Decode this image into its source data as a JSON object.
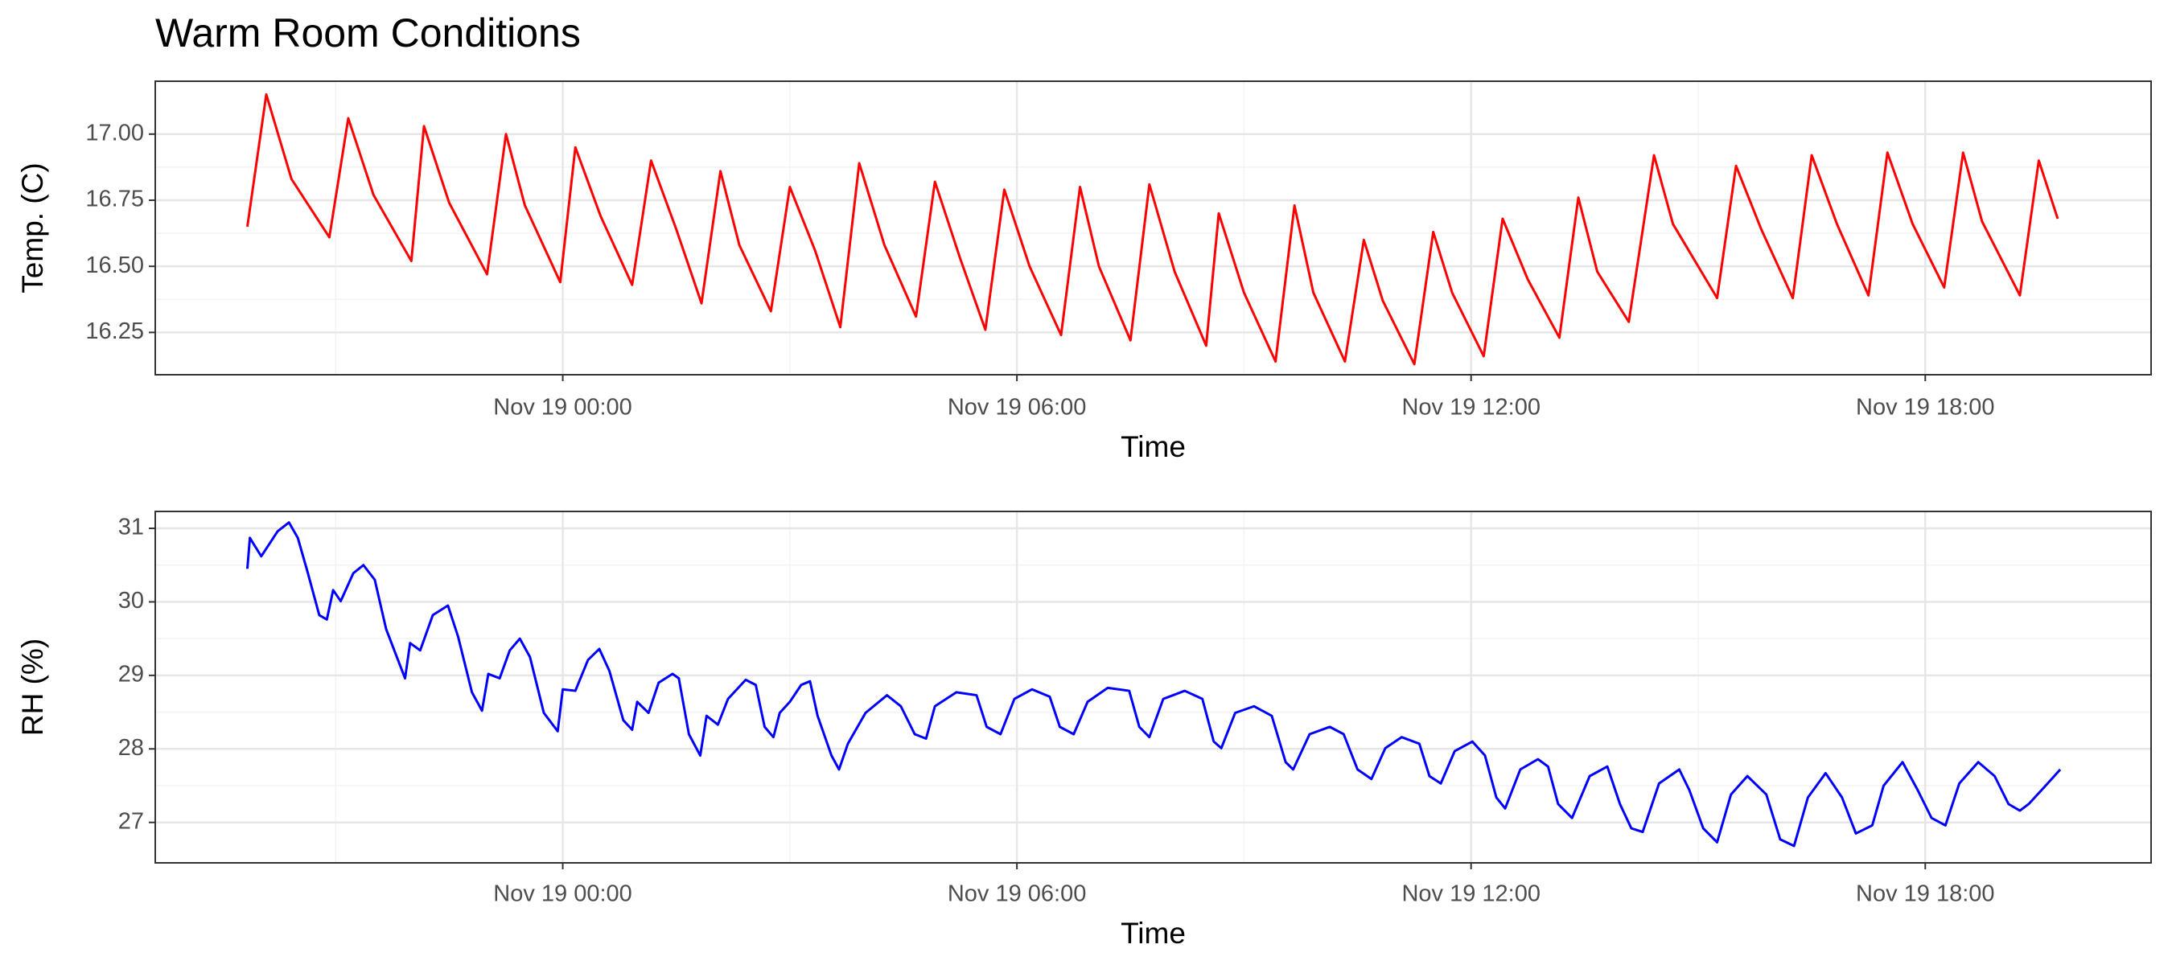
{
  "chart_data": [
    {
      "type": "line",
      "title": "Warm Room Conditions",
      "x_label": "Time",
      "y_label": "Temp. (C)",
      "color": "#ff0000",
      "grid": true,
      "xlim": [
        "Nov 18 18:37",
        "Nov 19 20:59"
      ],
      "xticks": [
        "Nov 19 00:00",
        "Nov 19 06:00",
        "Nov 19 12:00",
        "Nov 19 18:00"
      ],
      "ylim": [
        16.09,
        17.2
      ],
      "yticks": [
        16.25,
        {
          "value": 16.5,
          "label": "16.50"
        },
        16.75,
        {
          "value": 17,
          "label": "17.00"
        }
      ],
      "x": [
        "Nov 18 19:50",
        "Nov 18 20:05",
        "Nov 18 20:25",
        "Nov 18 20:55",
        "Nov 18 21:10",
        "Nov 18 21:30",
        "Nov 18 22:00",
        "Nov 18 22:10",
        "Nov 18 22:30",
        "Nov 18 23:00",
        "Nov 18 23:15",
        "Nov 18 23:30",
        "Nov 18 23:58",
        "Nov 19 00:10",
        "Nov 19 00:30",
        "Nov 19 00:55",
        "Nov 19 01:10",
        "Nov 19 01:30",
        "Nov 19 01:50",
        "Nov 19 02:05",
        "Nov 19 02:20",
        "Nov 19 02:45",
        "Nov 19 03:00",
        "Nov 19 03:20",
        "Nov 19 03:40",
        "Nov 19 03:55",
        "Nov 19 04:15",
        "Nov 19 04:40",
        "Nov 19 04:55",
        "Nov 19 05:15",
        "Nov 19 05:35",
        "Nov 19 05:50",
        "Nov 19 06:10",
        "Nov 19 06:35",
        "Nov 19 06:50",
        "Nov 19 07:05",
        "Nov 19 07:30",
        "Nov 19 07:45",
        "Nov 19 08:05",
        "Nov 19 08:30",
        "Nov 19 08:40",
        "Nov 19 09:00",
        "Nov 19 09:25",
        "Nov 19 09:40",
        "Nov 19 09:55",
        "Nov 19 10:20",
        "Nov 19 10:35",
        "Nov 19 10:50",
        "Nov 19 11:15",
        "Nov 19 11:30",
        "Nov 19 11:45",
        "Nov 19 12:10",
        "Nov 19 12:25",
        "Nov 19 12:45",
        "Nov 19 13:10",
        "Nov 19 13:25",
        "Nov 19 13:40",
        "Nov 19 14:05",
        "Nov 19 14:25",
        "Nov 19 14:40",
        "Nov 19 15:15",
        "Nov 19 15:30",
        "Nov 19 15:50",
        "Nov 19 16:15",
        "Nov 19 16:30",
        "Nov 19 16:50",
        "Nov 19 17:15",
        "Nov 19 17:30",
        "Nov 19 17:50",
        "Nov 19 18:15",
        "Nov 19 18:30",
        "Nov 19 18:45",
        "Nov 19 19:15",
        "Nov 19 19:30",
        "Nov 19 19:45"
      ],
      "values": [
        16.65,
        17.15,
        16.83,
        16.61,
        17.06,
        16.77,
        16.52,
        17.03,
        16.74,
        16.47,
        17.0,
        16.73,
        16.44,
        16.95,
        16.69,
        16.43,
        16.9,
        16.64,
        16.36,
        16.86,
        16.58,
        16.33,
        16.8,
        16.56,
        16.27,
        16.89,
        16.58,
        16.31,
        16.82,
        16.53,
        16.26,
        16.79,
        16.5,
        16.24,
        16.8,
        16.5,
        16.22,
        16.81,
        16.48,
        16.2,
        16.7,
        16.4,
        16.14,
        16.73,
        16.4,
        16.14,
        16.6,
        16.37,
        16.13,
        16.63,
        16.4,
        16.16,
        16.68,
        16.45,
        16.23,
        16.76,
        16.48,
        16.29,
        16.92,
        16.66,
        16.38,
        16.88,
        16.64,
        16.38,
        16.92,
        16.66,
        16.39,
        16.93,
        16.66,
        16.42,
        16.93,
        16.67,
        16.39,
        16.9,
        16.68
      ]
    },
    {
      "type": "line",
      "x_label": "Time",
      "y_label": "RH (%)",
      "color": "#0000ff",
      "grid": true,
      "xlim": [
        "Nov 18 18:37",
        "Nov 19 20:59"
      ],
      "xticks": [
        "Nov 19 00:00",
        "Nov 19 06:00",
        "Nov 19 12:00",
        "Nov 19 18:00"
      ],
      "ylim": [
        26.45,
        31.23
      ],
      "yticks": [
        27,
        28,
        29,
        30,
        31
      ],
      "x": [
        "Nov 18 19:50",
        "Nov 18 19:52",
        "Nov 18 20:01",
        "Nov 18 20:14",
        "Nov 18 20:23",
        "Nov 18 20:30",
        "Nov 18 20:38",
        "Nov 18 20:47",
        "Nov 18 20:53",
        "Nov 18 20:58",
        "Nov 18 21:04",
        "Nov 18 21:14",
        "Nov 18 21:22",
        "Nov 18 21:31",
        "Nov 18 21:40",
        "Nov 18 21:55",
        "Nov 18 21:59",
        "Nov 18 22:07",
        "Nov 18 22:17",
        "Nov 18 22:29",
        "Nov 18 22:37",
        "Nov 18 22:48",
        "Nov 18 22:56",
        "Nov 18 23:01",
        "Nov 18 23:10",
        "Nov 18 23:18",
        "Nov 18 23:26",
        "Nov 18 23:34",
        "Nov 18 23:45",
        "Nov 18 23:56",
        "Nov 19 00:00",
        "Nov 19 00:10",
        "Nov 19 00:20",
        "Nov 19 00:29",
        "Nov 19 00:37",
        "Nov 19 00:48",
        "Nov 19 00:55",
        "Nov 19 00:59",
        "Nov 19 01:08",
        "Nov 19 01:16",
        "Nov 19 01:27",
        "Nov 19 01:32",
        "Nov 19 01:40",
        "Nov 19 01:49",
        "Nov 19 01:54",
        "Nov 19 02:03",
        "Nov 19 02:11",
        "Nov 19 02:25",
        "Nov 19 02:33",
        "Nov 19 02:40",
        "Nov 19 02:47",
        "Nov 19 02:52",
        "Nov 19 03:00",
        "Nov 19 03:09",
        "Nov 19 03:16",
        "Nov 19 03:22",
        "Nov 19 03:33",
        "Nov 19 03:39",
        "Nov 19 03:46",
        "Nov 19 04:00",
        "Nov 19 04:17",
        "Nov 19 04:28",
        "Nov 19 04:39",
        "Nov 19 04:48",
        "Nov 19 04:55",
        "Nov 19 05:12",
        "Nov 19 05:28",
        "Nov 19 05:36",
        "Nov 19 05:47",
        "Nov 19 05:58",
        "Nov 19 06:12",
        "Nov 19 06:26",
        "Nov 19 06:34",
        "Nov 19 06:45",
        "Nov 19 06:56",
        "Nov 19 07:12",
        "Nov 19 07:29",
        "Nov 19 07:37",
        "Nov 19 07:45",
        "Nov 19 07:56",
        "Nov 19 08:13",
        "Nov 19 08:27",
        "Nov 19 08:36",
        "Nov 19 08:42",
        "Nov 19 08:53",
        "Nov 19 09:08",
        "Nov 19 09:22",
        "Nov 19 09:33",
        "Nov 19 09:39",
        "Nov 19 09:52",
        "Nov 19 10:08",
        "Nov 19 10:19",
        "Nov 19 10:30",
        "Nov 19 10:41",
        "Nov 19 10:52",
        "Nov 19 11:05",
        "Nov 19 11:19",
        "Nov 19 11:27",
        "Nov 19 11:36",
        "Nov 19 11:47",
        "Nov 19 12:01",
        "Nov 19 12:11",
        "Nov 19 12:20",
        "Nov 19 12:27",
        "Nov 19 12:39",
        "Nov 19 12:53",
        "Nov 19 13:01",
        "Nov 19 13:09",
        "Nov 19 13:20",
        "Nov 19 13:34",
        "Nov 19 13:48",
        "Nov 19 13:58",
        "Nov 19 14:07",
        "Nov 19 14:16",
        "Nov 19 14:29",
        "Nov 19 14:45",
        "Nov 19 14:53",
        "Nov 19 15:04",
        "Nov 19 15:15",
        "Nov 19 15:26",
        "Nov 19 15:39",
        "Nov 19 15:54",
        "Nov 19 16:05",
        "Nov 19 16:16",
        "Nov 19 16:27",
        "Nov 19 16:41",
        "Nov 19 16:54",
        "Nov 19 17:05",
        "Nov 19 17:18",
        "Nov 19 17:27",
        "Nov 19 17:42",
        "Nov 19 17:54",
        "Nov 19 18:05",
        "Nov 19 18:16",
        "Nov 19 18:27",
        "Nov 19 18:42",
        "Nov 19 18:55",
        "Nov 19 19:06",
        "Nov 19 19:15",
        "Nov 19 19:22",
        "Nov 19 19:37",
        "Nov 19 19:47"
      ],
      "values": [
        30.45,
        30.87,
        30.62,
        30.96,
        31.08,
        30.87,
        30.39,
        29.82,
        29.76,
        30.16,
        30.01,
        30.39,
        30.5,
        30.3,
        29.63,
        28.96,
        29.44,
        29.34,
        29.82,
        29.95,
        29.53,
        28.77,
        28.52,
        29.02,
        28.96,
        29.34,
        29.5,
        29.25,
        28.49,
        28.24,
        28.81,
        28.79,
        29.21,
        29.36,
        29.06,
        28.39,
        28.26,
        28.64,
        28.49,
        28.9,
        29.02,
        28.96,
        28.2,
        27.91,
        28.45,
        28.33,
        28.68,
        28.94,
        28.87,
        28.3,
        28.16,
        28.49,
        28.64,
        28.87,
        28.92,
        28.45,
        27.91,
        27.72,
        28.07,
        28.49,
        28.73,
        28.58,
        28.2,
        28.14,
        28.58,
        28.77,
        28.73,
        28.3,
        28.2,
        28.68,
        28.81,
        28.71,
        28.3,
        28.2,
        28.64,
        28.83,
        28.79,
        28.3,
        28.16,
        28.68,
        28.79,
        28.68,
        28.1,
        28.01,
        28.49,
        28.58,
        28.45,
        27.82,
        27.72,
        28.2,
        28.3,
        28.2,
        27.72,
        27.59,
        28.01,
        28.16,
        28.07,
        27.63,
        27.53,
        27.97,
        28.1,
        27.91,
        27.34,
        27.19,
        27.72,
        27.86,
        27.76,
        27.25,
        27.06,
        27.63,
        27.76,
        27.25,
        26.92,
        26.87,
        27.53,
        27.72,
        27.44,
        26.92,
        26.73,
        27.38,
        27.63,
        27.38,
        26.77,
        26.68,
        27.34,
        27.67,
        27.34,
        26.85,
        26.96,
        27.5,
        27.82,
        27.44,
        27.06,
        26.96,
        27.53,
        27.82,
        27.63,
        27.25,
        27.16,
        27.25,
        27.53,
        27.72
      ]
    }
  ]
}
